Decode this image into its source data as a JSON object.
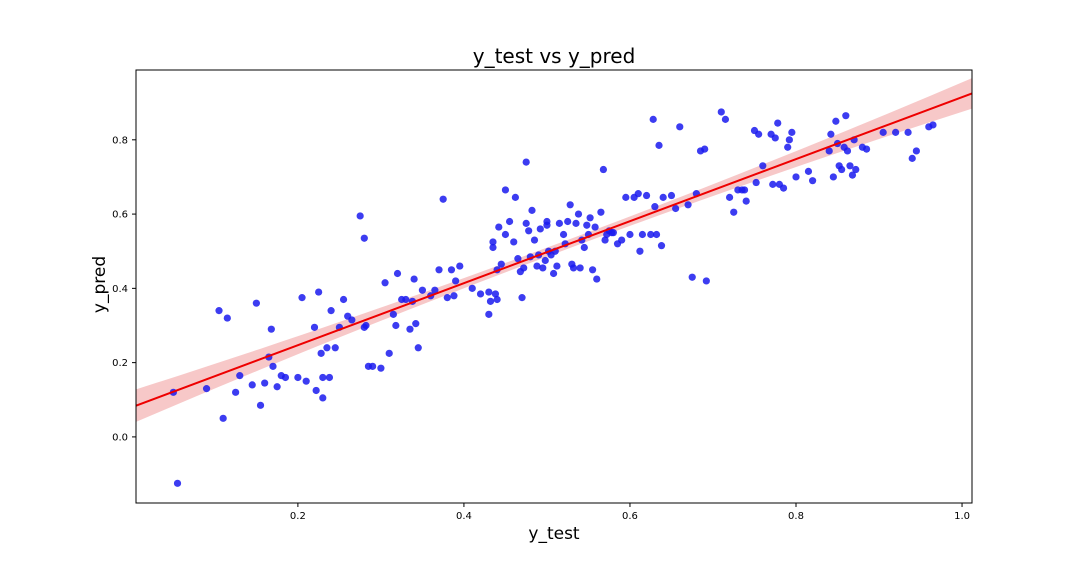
{
  "chart_data": {
    "type": "scatter",
    "title": "y_test vs y_pred",
    "xlabel": "y_test",
    "ylabel": "y_pred",
    "xlim": [
      0.005,
      1.012
    ],
    "ylim": [
      -0.178,
      0.988
    ],
    "xticks": [
      0.2,
      0.4,
      0.6,
      0.8,
      1.0
    ],
    "xtick_labels": [
      "0.2",
      "0.4",
      "0.6",
      "0.8",
      "1.0"
    ],
    "yticks": [
      0.0,
      0.2,
      0.4,
      0.6,
      0.8
    ],
    "ytick_labels": [
      "0.0",
      "0.2",
      "0.4",
      "0.6",
      "0.8"
    ],
    "grid": false,
    "point_color": "#1a1aee",
    "line_color": "#ee0000",
    "ci_color": "#f4b5b5",
    "regression_line": {
      "slope": 0.835,
      "intercept": 0.08
    },
    "points": [
      [
        0.05,
        0.12
      ],
      [
        0.055,
        -0.125
      ],
      [
        0.09,
        0.13
      ],
      [
        0.105,
        0.34
      ],
      [
        0.11,
        0.05
      ],
      [
        0.115,
        0.32
      ],
      [
        0.125,
        0.12
      ],
      [
        0.13,
        0.165
      ],
      [
        0.145,
        0.14
      ],
      [
        0.15,
        0.36
      ],
      [
        0.155,
        0.085
      ],
      [
        0.16,
        0.145
      ],
      [
        0.165,
        0.215
      ],
      [
        0.168,
        0.29
      ],
      [
        0.17,
        0.19
      ],
      [
        0.175,
        0.135
      ],
      [
        0.18,
        0.165
      ],
      [
        0.185,
        0.16
      ],
      [
        0.2,
        0.16
      ],
      [
        0.205,
        0.375
      ],
      [
        0.21,
        0.15
      ],
      [
        0.22,
        0.295
      ],
      [
        0.222,
        0.125
      ],
      [
        0.225,
        0.39
      ],
      [
        0.228,
        0.225
      ],
      [
        0.23,
        0.16
      ],
      [
        0.23,
        0.105
      ],
      [
        0.235,
        0.24
      ],
      [
        0.238,
        0.16
      ],
      [
        0.24,
        0.34
      ],
      [
        0.245,
        0.24
      ],
      [
        0.25,
        0.295
      ],
      [
        0.255,
        0.37
      ],
      [
        0.26,
        0.325
      ],
      [
        0.265,
        0.315
      ],
      [
        0.275,
        0.595
      ],
      [
        0.28,
        0.535
      ],
      [
        0.28,
        0.295
      ],
      [
        0.282,
        0.3
      ],
      [
        0.285,
        0.19
      ],
      [
        0.29,
        0.19
      ],
      [
        0.3,
        0.185
      ],
      [
        0.305,
        0.415
      ],
      [
        0.31,
        0.225
      ],
      [
        0.315,
        0.33
      ],
      [
        0.318,
        0.3
      ],
      [
        0.32,
        0.44
      ],
      [
        0.325,
        0.37
      ],
      [
        0.33,
        0.37
      ],
      [
        0.335,
        0.29
      ],
      [
        0.338,
        0.365
      ],
      [
        0.34,
        0.425
      ],
      [
        0.342,
        0.305
      ],
      [
        0.345,
        0.24
      ],
      [
        0.35,
        0.395
      ],
      [
        0.36,
        0.38
      ],
      [
        0.365,
        0.395
      ],
      [
        0.37,
        0.45
      ],
      [
        0.375,
        0.64
      ],
      [
        0.38,
        0.375
      ],
      [
        0.385,
        0.45
      ],
      [
        0.388,
        0.38
      ],
      [
        0.39,
        0.42
      ],
      [
        0.395,
        0.46
      ],
      [
        0.41,
        0.4
      ],
      [
        0.42,
        0.385
      ],
      [
        0.43,
        0.39
      ],
      [
        0.43,
        0.33
      ],
      [
        0.432,
        0.365
      ],
      [
        0.435,
        0.525
      ],
      [
        0.435,
        0.51
      ],
      [
        0.438,
        0.385
      ],
      [
        0.44,
        0.37
      ],
      [
        0.44,
        0.45
      ],
      [
        0.442,
        0.565
      ],
      [
        0.445,
        0.465
      ],
      [
        0.45,
        0.545
      ],
      [
        0.45,
        0.665
      ],
      [
        0.455,
        0.58
      ],
      [
        0.46,
        0.525
      ],
      [
        0.462,
        0.645
      ],
      [
        0.465,
        0.48
      ],
      [
        0.468,
        0.445
      ],
      [
        0.47,
        0.375
      ],
      [
        0.472,
        0.455
      ],
      [
        0.475,
        0.74
      ],
      [
        0.475,
        0.575
      ],
      [
        0.478,
        0.555
      ],
      [
        0.48,
        0.485
      ],
      [
        0.482,
        0.61
      ],
      [
        0.485,
        0.53
      ],
      [
        0.488,
        0.46
      ],
      [
        0.49,
        0.49
      ],
      [
        0.492,
        0.56
      ],
      [
        0.495,
        0.455
      ],
      [
        0.498,
        0.475
      ],
      [
        0.5,
        0.58
      ],
      [
        0.5,
        0.57
      ],
      [
        0.502,
        0.5
      ],
      [
        0.505,
        0.49
      ],
      [
        0.508,
        0.44
      ],
      [
        0.51,
        0.5
      ],
      [
        0.512,
        0.46
      ],
      [
        0.515,
        0.575
      ],
      [
        0.52,
        0.545
      ],
      [
        0.522,
        0.52
      ],
      [
        0.525,
        0.58
      ],
      [
        0.528,
        0.625
      ],
      [
        0.53,
        0.465
      ],
      [
        0.532,
        0.455
      ],
      [
        0.535,
        0.575
      ],
      [
        0.538,
        0.6
      ],
      [
        0.54,
        0.455
      ],
      [
        0.542,
        0.53
      ],
      [
        0.545,
        0.51
      ],
      [
        0.548,
        0.57
      ],
      [
        0.55,
        0.545
      ],
      [
        0.552,
        0.59
      ],
      [
        0.555,
        0.45
      ],
      [
        0.558,
        0.565
      ],
      [
        0.56,
        0.425
      ],
      [
        0.565,
        0.605
      ],
      [
        0.568,
        0.72
      ],
      [
        0.57,
        0.53
      ],
      [
        0.572,
        0.545
      ],
      [
        0.575,
        0.555
      ],
      [
        0.578,
        0.55
      ],
      [
        0.58,
        0.55
      ],
      [
        0.585,
        0.52
      ],
      [
        0.59,
        0.53
      ],
      [
        0.595,
        0.645
      ],
      [
        0.6,
        0.545
      ],
      [
        0.605,
        0.645
      ],
      [
        0.61,
        0.655
      ],
      [
        0.612,
        0.5
      ],
      [
        0.615,
        0.545
      ],
      [
        0.62,
        0.65
      ],
      [
        0.625,
        0.545
      ],
      [
        0.628,
        0.855
      ],
      [
        0.63,
        0.62
      ],
      [
        0.632,
        0.545
      ],
      [
        0.635,
        0.785
      ],
      [
        0.638,
        0.515
      ],
      [
        0.64,
        0.645
      ],
      [
        0.65,
        0.65
      ],
      [
        0.655,
        0.615
      ],
      [
        0.66,
        0.835
      ],
      [
        0.67,
        0.625
      ],
      [
        0.675,
        0.43
      ],
      [
        0.68,
        0.655
      ],
      [
        0.685,
        0.77
      ],
      [
        0.69,
        0.775
      ],
      [
        0.692,
        0.42
      ],
      [
        0.71,
        0.875
      ],
      [
        0.715,
        0.855
      ],
      [
        0.72,
        0.645
      ],
      [
        0.725,
        0.605
      ],
      [
        0.73,
        0.665
      ],
      [
        0.735,
        0.665
      ],
      [
        0.738,
        0.665
      ],
      [
        0.74,
        0.635
      ],
      [
        0.75,
        0.825
      ],
      [
        0.752,
        0.685
      ],
      [
        0.755,
        0.815
      ],
      [
        0.76,
        0.73
      ],
      [
        0.77,
        0.815
      ],
      [
        0.772,
        0.68
      ],
      [
        0.775,
        0.805
      ],
      [
        0.778,
        0.845
      ],
      [
        0.78,
        0.68
      ],
      [
        0.785,
        0.67
      ],
      [
        0.79,
        0.78
      ],
      [
        0.792,
        0.8
      ],
      [
        0.795,
        0.82
      ],
      [
        0.8,
        0.7
      ],
      [
        0.815,
        0.715
      ],
      [
        0.82,
        0.69
      ],
      [
        0.84,
        0.77
      ],
      [
        0.842,
        0.815
      ],
      [
        0.845,
        0.7
      ],
      [
        0.848,
        0.85
      ],
      [
        0.85,
        0.79
      ],
      [
        0.852,
        0.73
      ],
      [
        0.855,
        0.72
      ],
      [
        0.858,
        0.78
      ],
      [
        0.86,
        0.865
      ],
      [
        0.862,
        0.77
      ],
      [
        0.865,
        0.73
      ],
      [
        0.868,
        0.705
      ],
      [
        0.87,
        0.8
      ],
      [
        0.872,
        0.72
      ],
      [
        0.88,
        0.78
      ],
      [
        0.885,
        0.775
      ],
      [
        0.905,
        0.82
      ],
      [
        0.92,
        0.82
      ],
      [
        0.935,
        0.82
      ],
      [
        0.94,
        0.75
      ],
      [
        0.945,
        0.77
      ],
      [
        0.96,
        0.835
      ],
      [
        0.965,
        0.84
      ]
    ]
  }
}
